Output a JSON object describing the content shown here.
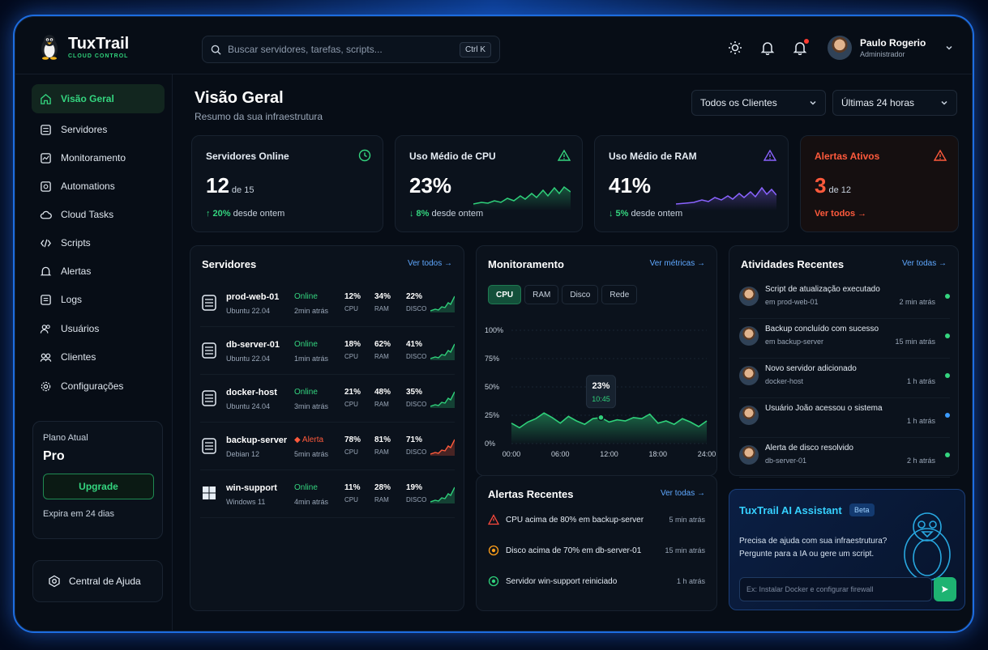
{
  "app": {
    "name": "TuxTrail",
    "subtitle": "CLOUD CONTROL"
  },
  "search": {
    "placeholder": "Buscar servidores, tarefas, scripts...",
    "shortcut": "Ctrl K"
  },
  "user": {
    "name": "Paulo Rogerio",
    "role": "Administrador"
  },
  "sidebar": {
    "items": [
      {
        "label": "Visão Geral",
        "icon": "home-icon",
        "active": true
      },
      {
        "label": "Servidores",
        "icon": "server-icon"
      },
      {
        "label": "Monitoramento",
        "icon": "monitor-icon"
      },
      {
        "label": "Automations",
        "icon": "automation-icon"
      },
      {
        "label": "Cloud Tasks",
        "icon": "cloud-icon"
      },
      {
        "label": "Scripts",
        "icon": "script-icon"
      },
      {
        "label": "Alertas",
        "icon": "bell-icon"
      },
      {
        "label": "Logs",
        "icon": "logs-icon"
      },
      {
        "label": "Usuários",
        "icon": "users-icon"
      },
      {
        "label": "Clientes",
        "icon": "clients-icon"
      },
      {
        "label": "Configurações",
        "icon": "gear-icon"
      }
    ],
    "plan": {
      "label": "Plano Atual",
      "name": "Pro",
      "button": "Upgrade",
      "expires": "Expira em 24 dias"
    },
    "help": "Central de Ajuda"
  },
  "page": {
    "title": "Visão Geral",
    "subtitle": "Resumo da sua infraestrutura"
  },
  "filters": {
    "clients": "Todos os Clientes",
    "range": "Últimas 24 horas"
  },
  "stats": {
    "online": {
      "title": "Servidores Online",
      "value": "12",
      "suffix": "de 15",
      "delta": "↑ 20%",
      "delta_text": "desde ontem"
    },
    "cpu": {
      "title": "Uso Médio de CPU",
      "value": "23%",
      "delta": "↓ 8%",
      "delta_text": "desde ontem"
    },
    "ram": {
      "title": "Uso Médio de RAM",
      "value": "41%",
      "delta": "↓ 5%",
      "delta_text": "desde ontem"
    },
    "alerts": {
      "title": "Alertas Ativos",
      "value": "3",
      "suffix": "de 12",
      "link": "Ver todos →"
    }
  },
  "servers": {
    "title": "Servidores",
    "link": "Ver todos →",
    "rows": [
      {
        "name": "prod-web-01",
        "os": "Ubuntu 22.04",
        "status": "Online",
        "time": "2min atrás",
        "cpu": "12%",
        "ram": "34%",
        "disk": "22%",
        "alert": false
      },
      {
        "name": "db-server-01",
        "os": "Ubuntu 22.04",
        "status": "Online",
        "time": "1min atrás",
        "cpu": "18%",
        "ram": "62%",
        "disk": "41%",
        "alert": false
      },
      {
        "name": "docker-host",
        "os": "Ubuntu 24.04",
        "status": "Online",
        "time": "3min atrás",
        "cpu": "21%",
        "ram": "48%",
        "disk": "35%",
        "alert": false
      },
      {
        "name": "backup-server",
        "os": "Debian 12",
        "status": "◆ Alerta",
        "time": "5min atrás",
        "cpu": "78%",
        "ram": "81%",
        "disk": "71%",
        "alert": true
      },
      {
        "name": "win-support",
        "os": "Windows 11",
        "status": "Online",
        "time": "4min atrás",
        "cpu": "11%",
        "ram": "28%",
        "disk": "19%",
        "alert": false
      }
    ],
    "labels": {
      "cpu": "CPU",
      "ram": "RAM",
      "disk": "DISCO"
    }
  },
  "monitoring": {
    "title": "Monitoramento",
    "link": "Ver métricas →",
    "tabs": [
      "CPU",
      "RAM",
      "Disco",
      "Rede"
    ],
    "tooltip": {
      "value": "23%",
      "time": "10:45"
    }
  },
  "chart_data": {
    "type": "area",
    "x": [
      "00:00",
      "01:00",
      "02:00",
      "03:00",
      "04:00",
      "05:00",
      "06:00",
      "07:00",
      "08:00",
      "09:00",
      "10:00",
      "10:45",
      "12:00",
      "13:00",
      "14:00",
      "15:00",
      "16:00",
      "17:00",
      "18:00",
      "19:00",
      "20:00",
      "21:00",
      "22:00",
      "23:00",
      "24:00"
    ],
    "series": [
      {
        "values": [
          18,
          14,
          19,
          22,
          27,
          23,
          18,
          24,
          20,
          17,
          22,
          23,
          19,
          21,
          20,
          23,
          22,
          26,
          18,
          20,
          17,
          22,
          19,
          15,
          20
        ]
      }
    ],
    "xticks": [
      "00:00",
      "06:00",
      "12:00",
      "18:00",
      "24:00"
    ],
    "yticks": [
      "0%",
      "25%",
      "50%",
      "75%",
      "100%"
    ],
    "ylim": [
      0,
      100
    ],
    "color": "#2fd07a"
  },
  "alerts": {
    "title": "Alertas Recentes",
    "link": "Ver todas →",
    "rows": [
      {
        "text": "CPU acima de 80% em backup-server",
        "time": "5 min atrás",
        "color": "#ff4a3d"
      },
      {
        "text": "Disco acima de 70% em db-server-01",
        "time": "15 min atrás",
        "color": "#ff9f1a"
      },
      {
        "text": "Servidor win-support reiniciado",
        "time": "1 h atrás",
        "color": "#2fd07a"
      }
    ]
  },
  "activities": {
    "title": "Atividades Recentes",
    "link": "Ver todas →",
    "rows": [
      {
        "title": "Script de atualização executado",
        "sub": "em prod-web-01",
        "time": "2 min atrás",
        "dot": "green"
      },
      {
        "title": "Backup concluído com sucesso",
        "sub": "em backup-server",
        "time": "15 min atrás",
        "dot": "green"
      },
      {
        "title": "Novo servidor adicionado",
        "sub": "docker-host",
        "time": "1 h atrás",
        "dot": "green"
      },
      {
        "title": "Usuário João acessou o sistema",
        "sub": "",
        "time": "1 h atrás",
        "dot": "blue"
      },
      {
        "title": "Alerta de disco resolvido",
        "sub": "db-server-01",
        "time": "2 h atrás",
        "dot": "green"
      }
    ]
  },
  "ai": {
    "title": "TuxTrail AI Assistant",
    "badge": "Beta",
    "text1": "Precisa de ajuda com sua infraestrutura?",
    "text2": "Pergunte para a IA ou gere um script.",
    "placeholder": "Ex: Instalar Docker e configurar firewall"
  }
}
